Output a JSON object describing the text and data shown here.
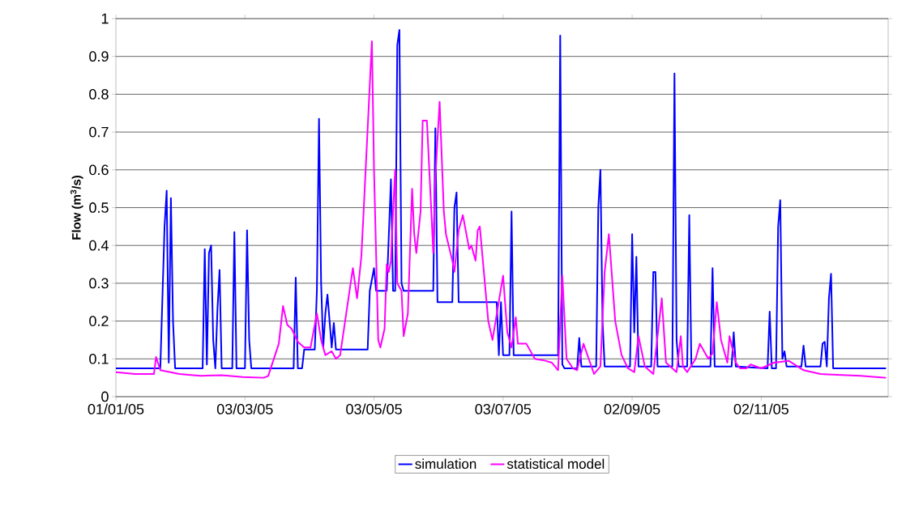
{
  "chart_data": {
    "type": "line",
    "ylabel": "Flow (m$^{3}$/s)",
    "xlim": [
      "2005-01-01",
      "2006-01-01"
    ],
    "xticks": [
      {
        "value": "2005-01-01",
        "label": "01/01/05"
      },
      {
        "value": "2005-03-03",
        "label": "03/03/05"
      },
      {
        "value": "2005-05-03",
        "label": "03/05/05"
      },
      {
        "value": "2005-07-03",
        "label": "03/07/05"
      },
      {
        "value": "2005-09-02",
        "label": "02/09/05"
      },
      {
        "value": "2005-11-02",
        "label": "02/11/05"
      }
    ],
    "ylim": [
      0,
      1
    ],
    "yticks": [
      0,
      0.1,
      0.2,
      0.3,
      0.4,
      0.5,
      0.6,
      0.7,
      0.8,
      0.9,
      1
    ],
    "grid": "y",
    "legend": "bottom",
    "marker": "none",
    "line_style": "solid",
    "series": [
      {
        "name": "simulation",
        "color": "#0000ff",
        "x": [
          "2005-01-01",
          "2005-01-22",
          "2005-01-24",
          "2005-01-25",
          "2005-01-26",
          "2005-01-27",
          "2005-01-28",
          "2005-01-29",
          "2005-02-11",
          "2005-02-12",
          "2005-02-13",
          "2005-02-14",
          "2005-02-15",
          "2005-02-16",
          "2005-02-17",
          "2005-02-18",
          "2005-02-19",
          "2005-02-20",
          "2005-02-25",
          "2005-02-26",
          "2005-02-27",
          "2005-03-03",
          "2005-03-04",
          "2005-03-05",
          "2005-03-06",
          "2005-03-26",
          "2005-03-27",
          "2005-03-28",
          "2005-03-30",
          "2005-03-31",
          "2005-04-05",
          "2005-04-06",
          "2005-04-07",
          "2005-04-08",
          "2005-04-09",
          "2005-04-10",
          "2005-04-11",
          "2005-04-12",
          "2005-04-13",
          "2005-04-14",
          "2005-04-15",
          "2005-04-30",
          "2005-05-01",
          "2005-05-03",
          "2005-05-04",
          "2005-05-09",
          "2005-05-11",
          "2005-05-12",
          "2005-05-13",
          "2005-05-14",
          "2005-05-15",
          "2005-05-16",
          "2005-05-17",
          "2005-05-31",
          "2005-06-01",
          "2005-06-02",
          "2005-06-09",
          "2005-06-10",
          "2005-06-11",
          "2005-06-12",
          "2005-06-30",
          "2005-07-01",
          "2005-07-02",
          "2005-07-03",
          "2005-07-06",
          "2005-07-07",
          "2005-07-08",
          "2005-07-29",
          "2005-07-30",
          "2005-07-31",
          "2005-08-01",
          "2005-08-07",
          "2005-08-08",
          "2005-08-09",
          "2005-08-16",
          "2005-08-17",
          "2005-08-18",
          "2005-08-19",
          "2005-08-20",
          "2005-09-01",
          "2005-09-02",
          "2005-09-03",
          "2005-09-04",
          "2005-09-05",
          "2005-09-11",
          "2005-09-12",
          "2005-09-13",
          "2005-09-14",
          "2005-09-21",
          "2005-09-22",
          "2005-09-23",
          "2005-09-24",
          "2005-09-28",
          "2005-09-29",
          "2005-09-30",
          "2005-10-09",
          "2005-10-10",
          "2005-10-11",
          "2005-10-19",
          "2005-10-20",
          "2005-10-21",
          "2005-11-05",
          "2005-11-06",
          "2005-11-07",
          "2005-11-09",
          "2005-11-10",
          "2005-11-11",
          "2005-11-12",
          "2005-11-13",
          "2005-11-14",
          "2005-11-21",
          "2005-11-22",
          "2005-11-23",
          "2005-11-30",
          "2005-12-01",
          "2005-12-02",
          "2005-12-03",
          "2005-12-04",
          "2005-12-05",
          "2005-12-06",
          "2005-12-31"
        ],
        "values": [
          0.075,
          0.075,
          0.45,
          0.545,
          0.09,
          0.525,
          0.2,
          0.075,
          0.075,
          0.39,
          0.085,
          0.38,
          0.4,
          0.15,
          0.075,
          0.23,
          0.335,
          0.075,
          0.075,
          0.435,
          0.075,
          0.075,
          0.44,
          0.15,
          0.075,
          0.075,
          0.315,
          0.075,
          0.075,
          0.125,
          0.125,
          0.28,
          0.735,
          0.3,
          0.13,
          0.22,
          0.27,
          0.2,
          0.13,
          0.195,
          0.125,
          0.125,
          0.28,
          0.34,
          0.28,
          0.28,
          0.575,
          0.28,
          0.28,
          0.93,
          0.97,
          0.3,
          0.28,
          0.28,
          0.71,
          0.25,
          0.25,
          0.5,
          0.54,
          0.25,
          0.25,
          0.11,
          0.25,
          0.11,
          0.11,
          0.49,
          0.11,
          0.11,
          0.955,
          0.085,
          0.075,
          0.075,
          0.155,
          0.08,
          0.08,
          0.5,
          0.6,
          0.2,
          0.08,
          0.08,
          0.43,
          0.17,
          0.37,
          0.08,
          0.08,
          0.33,
          0.33,
          0.08,
          0.08,
          0.855,
          0.15,
          0.08,
          0.08,
          0.48,
          0.08,
          0.08,
          0.34,
          0.08,
          0.08,
          0.17,
          0.08,
          0.075,
          0.225,
          0.075,
          0.075,
          0.45,
          0.52,
          0.1,
          0.12,
          0.08,
          0.08,
          0.135,
          0.08,
          0.08,
          0.14,
          0.145,
          0.08,
          0.26,
          0.325,
          0.075,
          0.075
        ]
      },
      {
        "name": "statistical model",
        "color": "#ff00ff",
        "x": [
          "2005-01-01",
          "2005-01-10",
          "2005-01-19",
          "2005-01-20",
          "2005-01-22",
          "2005-01-31",
          "2005-02-10",
          "2005-02-20",
          "2005-03-02",
          "2005-03-12",
          "2005-03-14",
          "2005-03-19",
          "2005-03-21",
          "2005-03-23",
          "2005-03-25",
          "2005-03-28",
          "2005-03-31",
          "2005-04-03",
          "2005-04-06",
          "2005-04-08",
          "2005-04-10",
          "2005-04-13",
          "2005-04-15",
          "2005-04-17",
          "2005-04-23",
          "2005-04-25",
          "2005-04-27",
          "2005-04-28",
          "2005-05-02",
          "2005-05-03",
          "2005-05-05",
          "2005-05-06",
          "2005-05-08",
          "2005-05-09",
          "2005-05-10",
          "2005-05-11",
          "2005-05-12",
          "2005-05-13",
          "2005-05-14",
          "2005-05-16",
          "2005-05-17",
          "2005-05-19",
          "2005-05-21",
          "2005-05-22",
          "2005-05-23",
          "2005-05-25",
          "2005-05-26",
          "2005-05-28",
          "2005-05-30",
          "2005-05-31",
          "2005-06-01",
          "2005-06-03",
          "2005-06-05",
          "2005-06-06",
          "2005-06-09",
          "2005-06-10",
          "2005-06-12",
          "2005-06-14",
          "2005-06-16",
          "2005-06-17",
          "2005-06-18",
          "2005-06-20",
          "2005-06-21",
          "2005-06-22",
          "2005-06-26",
          "2005-06-28",
          "2005-07-03",
          "2005-07-05",
          "2005-07-07",
          "2005-07-09",
          "2005-07-10",
          "2005-07-14",
          "2005-07-18",
          "2005-07-23",
          "2005-07-26",
          "2005-07-29",
          "2005-07-31",
          "2005-08-02",
          "2005-08-05",
          "2005-08-07",
          "2005-08-10",
          "2005-08-15",
          "2005-08-18",
          "2005-08-20",
          "2005-08-22",
          "2005-08-25",
          "2005-08-28",
          "2005-08-31",
          "2005-09-03",
          "2005-09-05",
          "2005-09-08",
          "2005-09-12",
          "2005-09-16",
          "2005-09-18",
          "2005-09-21",
          "2005-09-23",
          "2005-09-25",
          "2005-09-26",
          "2005-09-28",
          "2005-10-02",
          "2005-10-04",
          "2005-10-06",
          "2005-10-08",
          "2005-10-10",
          "2005-10-12",
          "2005-10-14",
          "2005-10-17",
          "2005-10-18",
          "2005-10-21",
          "2005-10-23",
          "2005-10-26",
          "2005-10-28",
          "2005-11-02",
          "2005-11-08",
          "2005-11-15",
          "2005-11-22",
          "2005-11-30",
          "2005-12-19",
          "2005-12-31"
        ],
        "values": [
          0.065,
          0.06,
          0.06,
          0.105,
          0.07,
          0.06,
          0.055,
          0.057,
          0.052,
          0.05,
          0.055,
          0.14,
          0.24,
          0.19,
          0.18,
          0.145,
          0.13,
          0.13,
          0.22,
          0.15,
          0.11,
          0.12,
          0.1,
          0.11,
          0.34,
          0.26,
          0.37,
          0.48,
          0.94,
          0.6,
          0.15,
          0.13,
          0.18,
          0.35,
          0.33,
          0.36,
          0.49,
          0.6,
          0.3,
          0.28,
          0.16,
          0.22,
          0.55,
          0.43,
          0.38,
          0.49,
          0.73,
          0.73,
          0.5,
          0.38,
          0.58,
          0.78,
          0.49,
          0.43,
          0.36,
          0.33,
          0.44,
          0.48,
          0.42,
          0.39,
          0.4,
          0.36,
          0.44,
          0.45,
          0.2,
          0.15,
          0.32,
          0.17,
          0.13,
          0.21,
          0.14,
          0.14,
          0.1,
          0.095,
          0.09,
          0.07,
          0.32,
          0.1,
          0.075,
          0.07,
          0.14,
          0.06,
          0.08,
          0.33,
          0.43,
          0.2,
          0.11,
          0.075,
          0.065,
          0.16,
          0.08,
          0.06,
          0.26,
          0.09,
          0.075,
          0.065,
          0.16,
          0.08,
          0.065,
          0.1,
          0.14,
          0.12,
          0.1,
          0.115,
          0.25,
          0.15,
          0.09,
          0.16,
          0.09,
          0.075,
          0.075,
          0.085,
          0.075,
          0.09,
          0.095,
          0.07,
          0.06,
          0.055,
          0.05
        ]
      }
    ]
  }
}
